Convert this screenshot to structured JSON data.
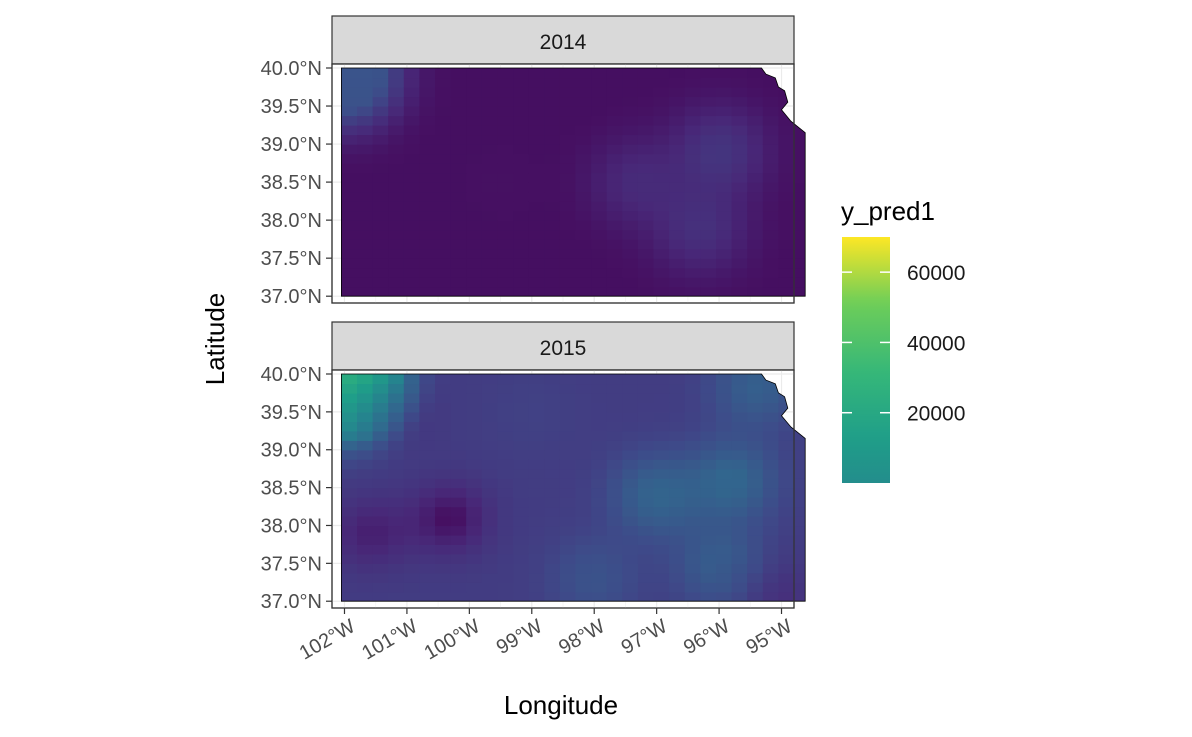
{
  "chart_data": {
    "type": "heatmap",
    "title": "",
    "xlabel": "Longitude",
    "ylabel": "Latitude",
    "panels": [
      {
        "facet": "2014",
        "field": [
          {
            "lon": -102.0,
            "lat": 39.95,
            "value": 9000
          },
          {
            "lon": -102.0,
            "lat": 39.85,
            "value": 3500
          },
          {
            "lon": -96.0,
            "lat": 38.9,
            "value": 2200
          },
          {
            "lon": -96.3,
            "lat": 37.9,
            "value": 1800
          },
          {
            "lon": -97.3,
            "lat": 38.5,
            "value": 1400
          },
          {
            "lon": -99.5,
            "lat": 38.5,
            "value": 200
          }
        ],
        "base_value": 150
      },
      {
        "facet": "2015",
        "field": [
          {
            "lon": -102.0,
            "lat": 39.97,
            "value": 70000
          },
          {
            "lon": -102.0,
            "lat": 39.85,
            "value": 30000
          },
          {
            "lon": -102.0,
            "lat": 39.7,
            "value": 9000
          },
          {
            "lon": -95.8,
            "lat": 38.6,
            "value": 10000
          },
          {
            "lon": -97.0,
            "lat": 38.4,
            "value": 9500
          },
          {
            "lon": -95.4,
            "lat": 39.85,
            "value": 8500
          },
          {
            "lon": -96.0,
            "lat": 37.5,
            "value": 8000
          },
          {
            "lon": -98.0,
            "lat": 37.3,
            "value": 6000
          },
          {
            "lon": -99.0,
            "lat": 39.5,
            "value": 3500
          },
          {
            "lon": -100.3,
            "lat": 38.1,
            "value": 150
          },
          {
            "lon": -101.3,
            "lat": 39.6,
            "value": 200
          },
          {
            "lon": -101.6,
            "lat": 37.9,
            "value": 800
          },
          {
            "lon": -95.15,
            "lat": 37.1,
            "value": 1500
          }
        ],
        "base_value": 3000
      }
    ],
    "x_ticks": [
      "102°W",
      "101°W",
      "100°W",
      "99°W",
      "98°W",
      "97°W",
      "96°W",
      "95°W"
    ],
    "x_tick_values": [
      -102,
      -101,
      -100,
      -99,
      -98,
      -97,
      -96,
      -95
    ],
    "y_ticks": [
      "37.0°N",
      "37.5°N",
      "38.0°N",
      "38.5°N",
      "39.0°N",
      "39.5°N",
      "40.0°N"
    ],
    "y_tick_values": [
      37.0,
      37.5,
      38.0,
      38.5,
      39.0,
      39.5,
      40.0
    ],
    "xlim": [
      -102.2,
      -94.8
    ],
    "ylim": [
      36.95,
      40.0
    ],
    "legend": {
      "title": "y_pred1",
      "ticks": [
        "20000",
        "40000",
        "60000"
      ],
      "tick_values": [
        20000,
        40000,
        60000
      ],
      "range": [
        0,
        70000
      ],
      "placement": "right",
      "colors": [
        "#440154",
        "#3b528b",
        "#21918c",
        "#5ec962",
        "#fde725"
      ]
    },
    "grid": true,
    "theme": "bw"
  }
}
